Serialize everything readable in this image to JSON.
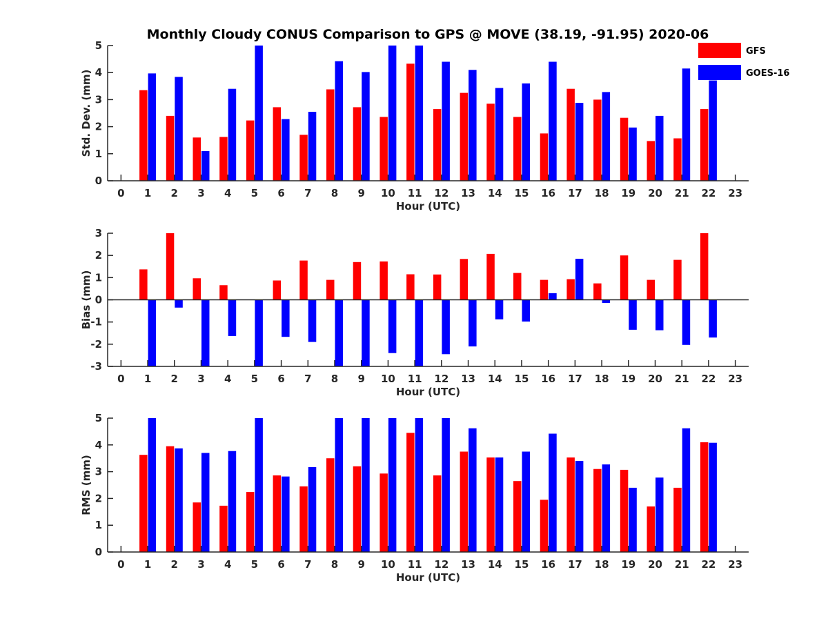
{
  "title": "Monthly Cloudy CONUS Comparison to GPS @ MOVE (38.19, -91.95) 2020-06",
  "legend": [
    {
      "name": "GFS",
      "color": "#ff0000"
    },
    {
      "name": "GOES-16",
      "color": "#0000ff"
    }
  ],
  "chart_data": [
    {
      "type": "bar",
      "xlabel": "Hour (UTC)",
      "ylabel": "Std. Dev. (mm)",
      "ylim": [
        0,
        5
      ],
      "yticks": [
        0,
        1,
        2,
        3,
        4,
        5
      ],
      "xlim": [
        -0.5,
        23.5
      ],
      "categories": [
        "0",
        "1",
        "2",
        "3",
        "4",
        "5",
        "6",
        "7",
        "8",
        "9",
        "10",
        "11",
        "12",
        "13",
        "14",
        "15",
        "16",
        "17",
        "18",
        "19",
        "20",
        "21",
        "22",
        "23"
      ],
      "series": [
        {
          "name": "GFS",
          "color": "#ff0000",
          "values": [
            null,
            3.35,
            2.4,
            1.6,
            1.62,
            2.23,
            2.72,
            1.7,
            3.38,
            2.72,
            2.36,
            4.33,
            2.65,
            3.25,
            2.85,
            2.36,
            1.75,
            3.4,
            3.0,
            2.33,
            1.47,
            1.57,
            2.65,
            null
          ]
        },
        {
          "name": "GOES-16",
          "color": "#0000ff",
          "values": [
            null,
            3.97,
            3.84,
            1.1,
            3.4,
            5.0,
            2.28,
            2.55,
            4.42,
            4.02,
            5.0,
            5.0,
            4.4,
            4.1,
            3.43,
            3.6,
            4.4,
            2.88,
            3.28,
            1.97,
            2.4,
            4.15,
            3.71,
            null
          ]
        }
      ]
    },
    {
      "type": "bar",
      "xlabel": "Hour (UTC)",
      "ylabel": "Bias (mm)",
      "ylim": [
        -3,
        3
      ],
      "yticks": [
        -3,
        -2,
        -1,
        0,
        1,
        2,
        3
      ],
      "xlim": [
        -0.5,
        23.5
      ],
      "categories": [
        "0",
        "1",
        "2",
        "3",
        "4",
        "5",
        "6",
        "7",
        "8",
        "9",
        "10",
        "11",
        "12",
        "13",
        "14",
        "15",
        "16",
        "17",
        "18",
        "19",
        "20",
        "21",
        "22",
        "23"
      ],
      "series": [
        {
          "name": "GFS",
          "color": "#ff0000",
          "values": [
            null,
            1.37,
            3.0,
            0.97,
            0.66,
            0.0,
            0.87,
            1.77,
            0.9,
            1.7,
            1.73,
            1.15,
            1.14,
            1.84,
            2.07,
            1.21,
            0.9,
            0.93,
            0.74,
            2.0,
            0.9,
            1.8,
            3.0,
            null
          ]
        },
        {
          "name": "GOES-16",
          "color": "#0000ff",
          "values": [
            null,
            -3.0,
            -0.35,
            -3.0,
            -1.63,
            -3.0,
            -1.67,
            -1.9,
            -3.0,
            -3.0,
            -2.4,
            -3.0,
            -2.45,
            -2.1,
            -0.88,
            -0.98,
            0.3,
            1.85,
            -0.14,
            -1.35,
            -1.37,
            -2.03,
            -1.7,
            null
          ]
        }
      ]
    },
    {
      "type": "bar",
      "xlabel": "Hour (UTC)",
      "ylabel": "RMS (mm)",
      "ylim": [
        0,
        5
      ],
      "yticks": [
        0,
        1,
        2,
        3,
        4,
        5
      ],
      "xlim": [
        -0.5,
        23.5
      ],
      "categories": [
        "0",
        "1",
        "2",
        "3",
        "4",
        "5",
        "6",
        "7",
        "8",
        "9",
        "10",
        "11",
        "12",
        "13",
        "14",
        "15",
        "16",
        "17",
        "18",
        "19",
        "20",
        "21",
        "22",
        "23"
      ],
      "series": [
        {
          "name": "GFS",
          "color": "#ff0000",
          "values": [
            null,
            3.63,
            3.95,
            1.85,
            1.73,
            2.24,
            2.86,
            2.45,
            3.5,
            3.2,
            2.93,
            4.45,
            2.86,
            3.75,
            3.53,
            2.65,
            1.95,
            3.53,
            3.1,
            3.07,
            1.7,
            2.4,
            4.1,
            null
          ]
        },
        {
          "name": "GOES-16",
          "color": "#0000ff",
          "values": [
            null,
            5.0,
            3.87,
            3.7,
            3.77,
            5.0,
            2.82,
            3.17,
            5.0,
            5.0,
            5.0,
            5.0,
            5.0,
            4.62,
            3.53,
            3.75,
            4.42,
            3.4,
            3.27,
            2.4,
            2.78,
            4.62,
            4.08,
            null
          ]
        }
      ]
    }
  ]
}
